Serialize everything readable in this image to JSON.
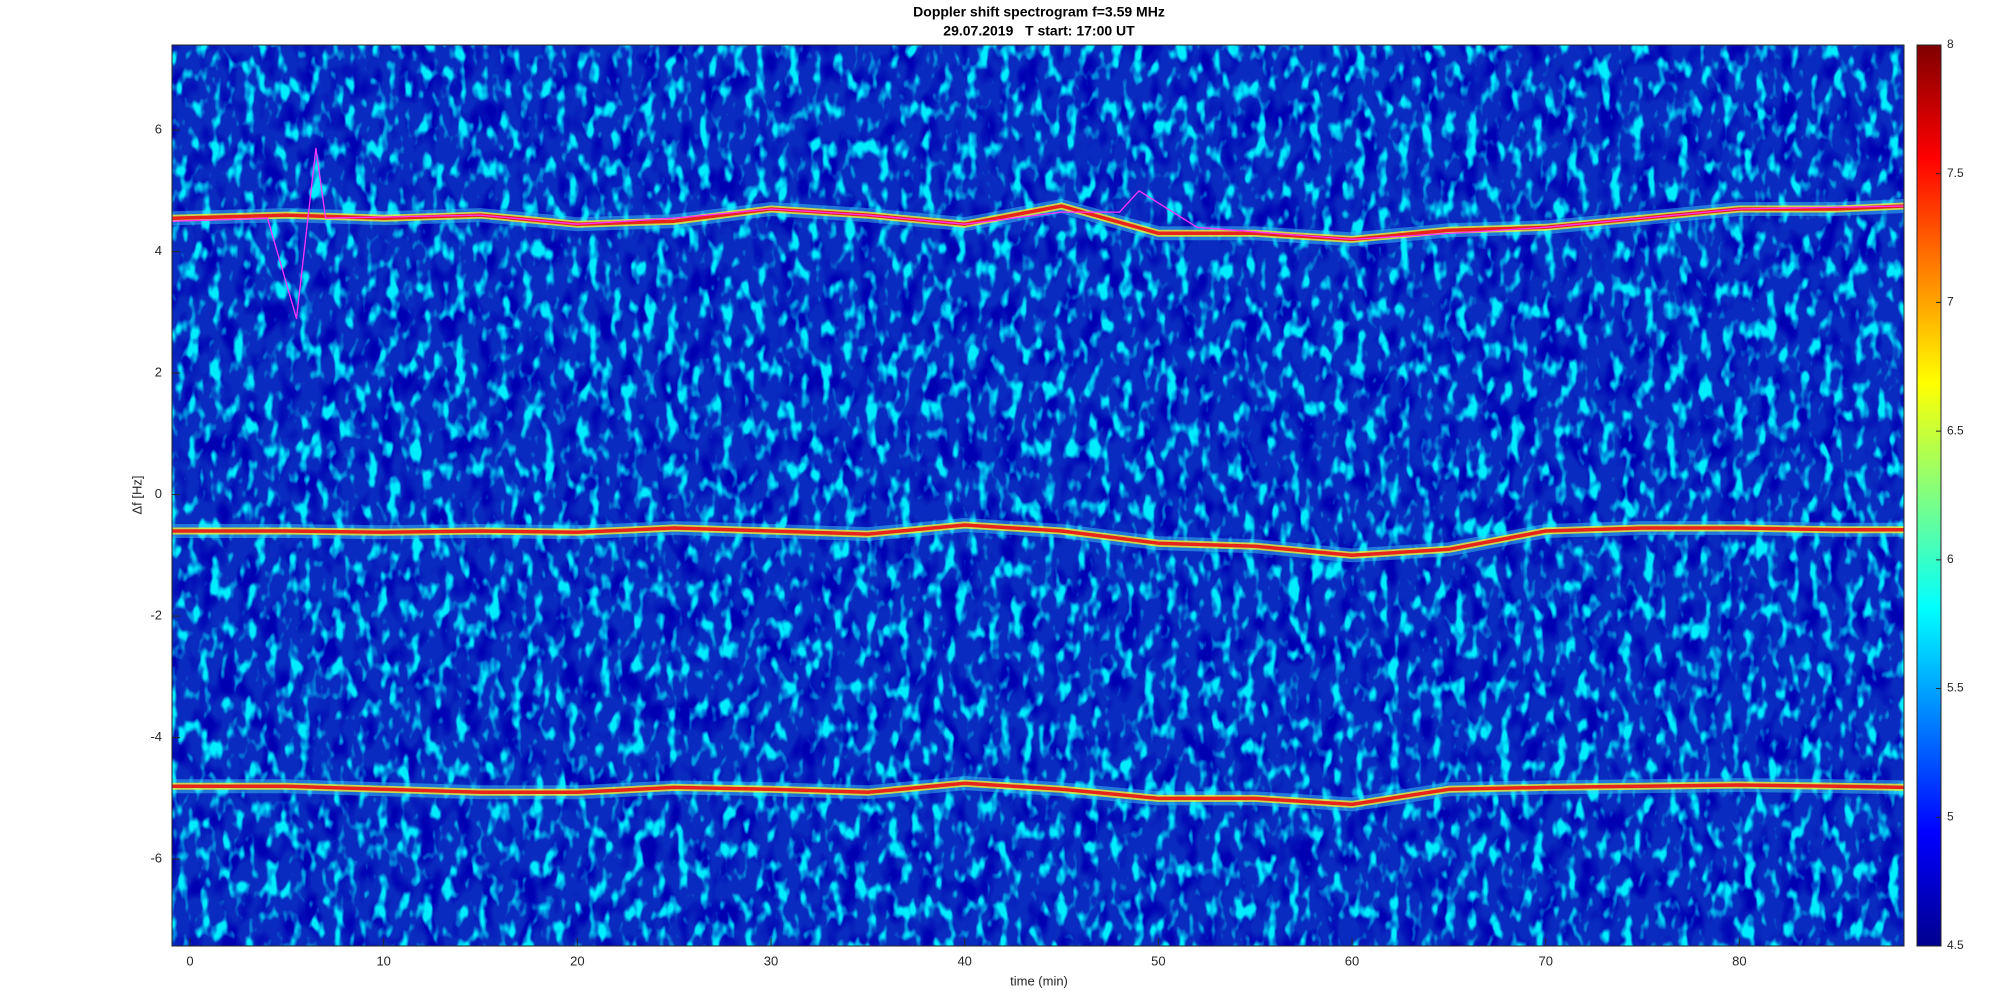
{
  "chart_data": {
    "type": "spectrogram",
    "title": "Doppler shift spectrogram f=3.59 MHz",
    "subtitle": "29.07.2019   T start: 17:00 UT",
    "x_label": "time (min)",
    "y_label": "Δf [Hz]",
    "xlim": [
      -0.93,
      88.5
    ],
    "ylim": [
      -7.43,
      7.4
    ],
    "xticks": [
      0,
      10,
      20,
      30,
      40,
      50,
      60,
      70,
      80
    ],
    "yticks": [
      -6,
      -4,
      -2,
      0,
      2,
      4,
      6
    ],
    "clim": [
      4.5,
      8
    ],
    "cticks": [
      4.5,
      5,
      5.5,
      6,
      6.5,
      7,
      7.5,
      8
    ],
    "colormap": [
      "#00008f",
      "#0000ff",
      "#0080ff",
      "#00ffff",
      "#80ff80",
      "#ffff00",
      "#ff8000",
      "#ff0000",
      "#800000"
    ],
    "background_color": "#0a2bbf",
    "x": [
      -0.9,
      5,
      10,
      15,
      20,
      25,
      30,
      35,
      40,
      45,
      50,
      55,
      60,
      65,
      70,
      75,
      80,
      85,
      88.5
    ],
    "series": [
      {
        "color": "#e8231c",
        "values": [
          4.55,
          4.6,
          4.55,
          4.6,
          4.45,
          4.5,
          4.7,
          4.6,
          4.45,
          4.75,
          4.3,
          4.3,
          4.2,
          4.35,
          4.4,
          4.55,
          4.7,
          4.7,
          4.75
        ]
      },
      {
        "color": "#e8231c",
        "values": [
          -0.6,
          -0.6,
          -0.62,
          -0.6,
          -0.62,
          -0.55,
          -0.6,
          -0.65,
          -0.5,
          -0.6,
          -0.8,
          -0.85,
          -1.0,
          -0.9,
          -0.6,
          -0.55,
          -0.55,
          -0.58,
          -0.58
        ]
      },
      {
        "color": "#e8231c",
        "values": [
          -4.8,
          -4.8,
          -4.85,
          -4.9,
          -4.9,
          -4.82,
          -4.85,
          -4.9,
          -4.75,
          -4.85,
          -5.0,
          -5.0,
          -5.1,
          -4.85,
          -4.82,
          -4.8,
          -4.78,
          -4.8,
          -4.82
        ]
      },
      {
        "color": "#ff33ff",
        "x": [
          -0.9,
          4,
          5.5,
          6.5,
          7,
          15,
          20,
          25,
          30,
          35,
          40,
          45,
          48,
          49,
          52,
          60,
          70,
          80,
          88.5
        ],
        "values": [
          4.5,
          4.55,
          2.9,
          5.7,
          4.55,
          4.6,
          4.45,
          4.55,
          4.7,
          4.6,
          4.45,
          4.65,
          4.65,
          5.0,
          4.4,
          4.2,
          4.4,
          4.7,
          4.75
        ]
      }
    ]
  }
}
